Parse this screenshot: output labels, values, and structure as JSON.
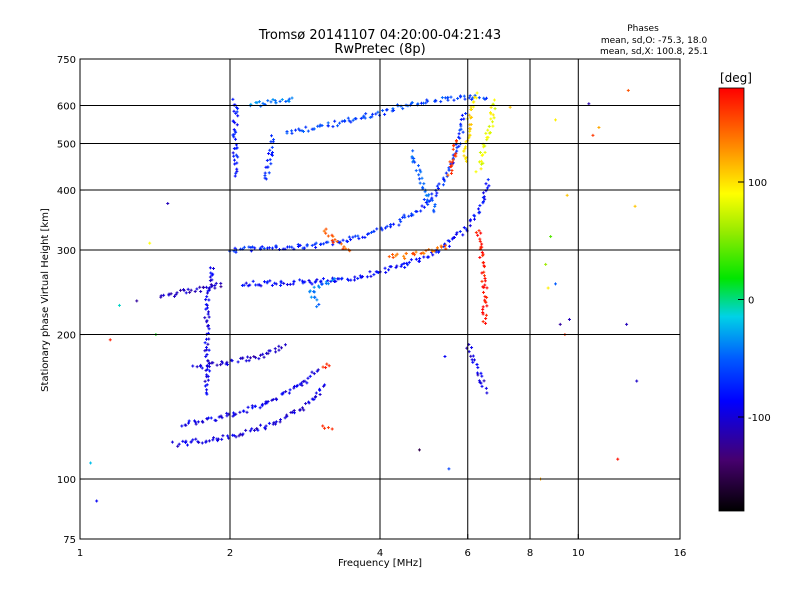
{
  "header": {
    "title_line1": "Tromsø 20141107 04:20:00-04:21:43",
    "title_line2": "RwPretec (8p)",
    "phase_title": "Phases",
    "phase_line1": "mean, sd,O: -75.3, 18.0",
    "phase_line2": "mean, sd,X: 100.8, 25.1"
  },
  "colorbar": {
    "unit": "[deg]",
    "min": -180,
    "max": 180,
    "ticks": [
      {
        "value": 100,
        "label": "100"
      },
      {
        "value": 0,
        "label": "0"
      },
      {
        "value": -100,
        "label": "-100"
      }
    ]
  },
  "chart_data": {
    "type": "scatter",
    "xlabel": "Frequency [MHz]",
    "ylabel": "Stationary phase Virtual Height [km]",
    "x_scale": "log",
    "y_scale": "log",
    "xlim": [
      1,
      16
    ],
    "ylim": [
      75,
      750
    ],
    "x_ticks": [
      {
        "value": 1,
        "label": "1"
      },
      {
        "value": 2,
        "label": "2"
      },
      {
        "value": 4,
        "label": "4"
      },
      {
        "value": 6,
        "label": "6"
      },
      {
        "value": 8,
        "label": "8"
      },
      {
        "value": 10,
        "label": "10"
      },
      {
        "value": 16,
        "label": "16"
      }
    ],
    "x_grid": [
      2,
      4,
      6,
      8,
      10
    ],
    "y_ticks": [
      {
        "value": 75,
        "label": "75"
      },
      {
        "value": 100,
        "label": "100"
      },
      {
        "value": 200,
        "label": "200"
      },
      {
        "value": 300,
        "label": "300"
      },
      {
        "value": 400,
        "label": "400"
      },
      {
        "value": 500,
        "label": "500"
      },
      {
        "value": 600,
        "label": "600"
      },
      {
        "value": 750,
        "label": "750"
      }
    ],
    "y_grid": [
      100,
      200,
      300,
      400,
      500,
      600
    ],
    "grid": true,
    "traces": [
      {
        "phase": -100,
        "points": [
          [
            1.55,
            118
          ],
          [
            1.75,
            120
          ],
          [
            1.95,
            122
          ],
          [
            2.2,
            126
          ],
          [
            2.5,
            132
          ],
          [
            2.8,
            140
          ],
          [
            3.0,
            150
          ],
          [
            3.1,
            158
          ]
        ]
      },
      {
        "phase": -95,
        "points": [
          [
            1.6,
            130
          ],
          [
            1.9,
            134
          ],
          [
            2.2,
            140
          ],
          [
            2.5,
            148
          ],
          [
            2.8,
            158
          ],
          [
            3.0,
            170
          ]
        ]
      },
      {
        "phase": -110,
        "points": [
          [
            1.45,
            240
          ],
          [
            1.6,
            245
          ],
          [
            1.8,
            250
          ],
          [
            1.95,
            255
          ]
        ]
      },
      {
        "phase": -85,
        "points": [
          [
            2.1,
            255
          ],
          [
            2.5,
            256
          ],
          [
            3.0,
            258
          ],
          [
            3.5,
            262
          ],
          [
            4.0,
            270
          ],
          [
            4.5,
            280
          ],
          [
            5.0,
            292
          ],
          [
            5.5,
            310
          ],
          [
            6.0,
            335
          ],
          [
            6.3,
            360
          ],
          [
            6.5,
            390
          ],
          [
            6.6,
            420
          ]
        ]
      },
      {
        "phase": -70,
        "points": [
          [
            2.0,
            300
          ],
          [
            2.4,
            302
          ],
          [
            2.8,
            305
          ],
          [
            3.2,
            310
          ],
          [
            3.6,
            318
          ],
          [
            4.0,
            330
          ],
          [
            4.4,
            345
          ],
          [
            4.8,
            365
          ],
          [
            5.1,
            390
          ],
          [
            5.4,
            420
          ],
          [
            5.6,
            460
          ],
          [
            5.8,
            520
          ],
          [
            5.9,
            580
          ]
        ]
      },
      {
        "phase": -60,
        "points": [
          [
            2.6,
            525
          ],
          [
            3.0,
            540
          ],
          [
            3.5,
            560
          ],
          [
            4.0,
            580
          ],
          [
            4.5,
            600
          ],
          [
            5.2,
            615
          ],
          [
            6.0,
            625
          ],
          [
            6.6,
            625
          ]
        ]
      },
      {
        "phase": -50,
        "points": [
          [
            4.6,
            480
          ],
          [
            4.8,
            430
          ],
          [
            5.0,
            390
          ],
          [
            5.2,
            360
          ]
        ]
      },
      {
        "phase": 150,
        "points": [
          [
            3.1,
            330
          ],
          [
            3.3,
            310
          ],
          [
            3.5,
            295
          ]
        ]
      },
      {
        "phase": 145,
        "points": [
          [
            4.2,
            290
          ],
          [
            4.6,
            292
          ],
          [
            5.0,
            298
          ],
          [
            5.5,
            305
          ]
        ]
      },
      {
        "phase": 165,
        "points": [
          [
            3.1,
            170
          ],
          [
            3.2,
            175
          ]
        ]
      },
      {
        "phase": 170,
        "points": [
          [
            3.1,
            130
          ],
          [
            3.2,
            126
          ]
        ]
      },
      {
        "phase": 100,
        "points": [
          [
            5.9,
            460
          ],
          [
            6.0,
            520
          ],
          [
            6.1,
            590
          ],
          [
            6.3,
            640
          ]
        ]
      },
      {
        "phase": 85,
        "points": [
          [
            6.3,
            440
          ],
          [
            6.5,
            500
          ],
          [
            6.7,
            560
          ],
          [
            6.8,
            620
          ]
        ]
      },
      {
        "phase": -80,
        "points": [
          [
            2.05,
            430
          ],
          [
            2.05,
            500
          ],
          [
            2.05,
            560
          ],
          [
            2.05,
            620
          ]
        ]
      },
      {
        "phase": -75,
        "points": [
          [
            2.35,
            420
          ],
          [
            2.4,
            460
          ],
          [
            2.45,
            520
          ]
        ]
      },
      {
        "phase": -95,
        "points": [
          [
            1.8,
            150
          ],
          [
            1.8,
            180
          ],
          [
            1.8,
            210
          ],
          [
            1.8,
            240
          ],
          [
            1.85,
            280
          ]
        ]
      },
      {
        "phase": 160,
        "points": [
          [
            5.5,
            430
          ],
          [
            5.6,
            470
          ],
          [
            5.7,
            510
          ]
        ]
      },
      {
        "phase": -40,
        "points": [
          [
            2.2,
            600
          ],
          [
            2.4,
            610
          ],
          [
            2.7,
            615
          ]
        ]
      },
      {
        "phase": -105,
        "points": [
          [
            1.7,
            170
          ],
          [
            2.0,
            175
          ],
          [
            2.3,
            180
          ],
          [
            2.6,
            190
          ]
        ]
      },
      {
        "phase": -45,
        "points": [
          [
            3.0,
            230
          ],
          [
            2.9,
            245
          ],
          [
            3.3,
            260
          ]
        ]
      },
      {
        "phase": -100,
        "points": [
          [
            6.0,
            190
          ],
          [
            6.2,
            175
          ],
          [
            6.4,
            160
          ],
          [
            6.5,
            150
          ]
        ]
      },
      {
        "phase": 175,
        "points": [
          [
            6.3,
            330
          ],
          [
            6.4,
            290
          ],
          [
            6.5,
            250
          ],
          [
            6.5,
            210
          ]
        ]
      }
    ],
    "scattered": [
      [
        1.05,
        108,
        -20
      ],
      [
        1.08,
        90,
        -90
      ],
      [
        1.15,
        195,
        170
      ],
      [
        1.3,
        235,
        -120
      ],
      [
        1.38,
        310,
        90
      ],
      [
        1.42,
        200,
        20
      ],
      [
        1.5,
        375,
        -110
      ],
      [
        1.2,
        230,
        -10
      ],
      [
        8.6,
        280,
        60
      ],
      [
        8.8,
        320,
        40
      ],
      [
        9.0,
        255,
        -50
      ],
      [
        9.2,
        210,
        -120
      ],
      [
        9.4,
        200,
        160
      ],
      [
        9.5,
        390,
        110
      ],
      [
        8.7,
        250,
        95
      ],
      [
        9.0,
        560,
        95
      ],
      [
        9.6,
        215,
        -110
      ],
      [
        10.5,
        605,
        -115
      ],
      [
        10.7,
        520,
        160
      ],
      [
        11.0,
        540,
        120
      ],
      [
        12.0,
        110,
        175
      ],
      [
        12.5,
        210,
        -110
      ],
      [
        12.6,
        645,
        150
      ],
      [
        13.0,
        370,
        110
      ],
      [
        13.1,
        160,
        -105
      ],
      [
        5.4,
        180,
        -90
      ],
      [
        5.5,
        105,
        -60
      ],
      [
        4.8,
        115,
        -150
      ],
      [
        7.3,
        595,
        110
      ],
      [
        8.4,
        100,
        120
      ]
    ]
  }
}
